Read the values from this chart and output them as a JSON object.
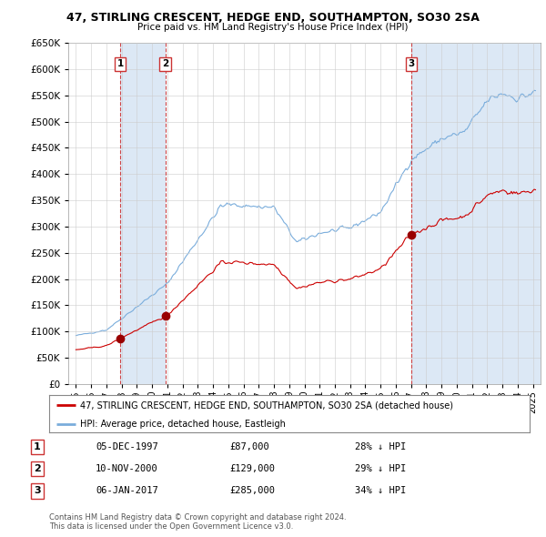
{
  "title": "47, STIRLING CRESCENT, HEDGE END, SOUTHAMPTON, SO30 2SA",
  "subtitle": "Price paid vs. HM Land Registry's House Price Index (HPI)",
  "legend_property": "47, STIRLING CRESCENT, HEDGE END, SOUTHAMPTON, SO30 2SA (detached house)",
  "legend_hpi": "HPI: Average price, detached house, Eastleigh",
  "footer": "Contains HM Land Registry data © Crown copyright and database right 2024.\nThis data is licensed under the Open Government Licence v3.0.",
  "transactions": [
    {
      "label": "1",
      "date": "05-DEC-1997",
      "price": 87000,
      "hpi_pct": "28% ↓ HPI",
      "x": 1997.92
    },
    {
      "label": "2",
      "date": "10-NOV-2000",
      "price": 129000,
      "hpi_pct": "29% ↓ HPI",
      "x": 2000.87
    },
    {
      "label": "3",
      "date": "06-JAN-2017",
      "price": 285000,
      "hpi_pct": "34% ↓ HPI",
      "x": 2017.02
    }
  ],
  "property_color": "#cc0000",
  "hpi_color": "#7aaddc",
  "shade_color": "#dce8f5",
  "vline_color": "#cc3333",
  "dot_color": "#990000",
  "ylim": [
    0,
    650000
  ],
  "yticks": [
    0,
    50000,
    100000,
    150000,
    200000,
    250000,
    300000,
    350000,
    400000,
    450000,
    500000,
    550000,
    600000,
    650000
  ],
  "xlim": [
    1994.5,
    2025.5
  ],
  "xticks": [
    1995,
    1996,
    1997,
    1998,
    1999,
    2000,
    2001,
    2002,
    2003,
    2004,
    2005,
    2006,
    2007,
    2008,
    2009,
    2010,
    2011,
    2012,
    2013,
    2014,
    2015,
    2016,
    2017,
    2018,
    2019,
    2020,
    2021,
    2022,
    2023,
    2024,
    2025
  ]
}
